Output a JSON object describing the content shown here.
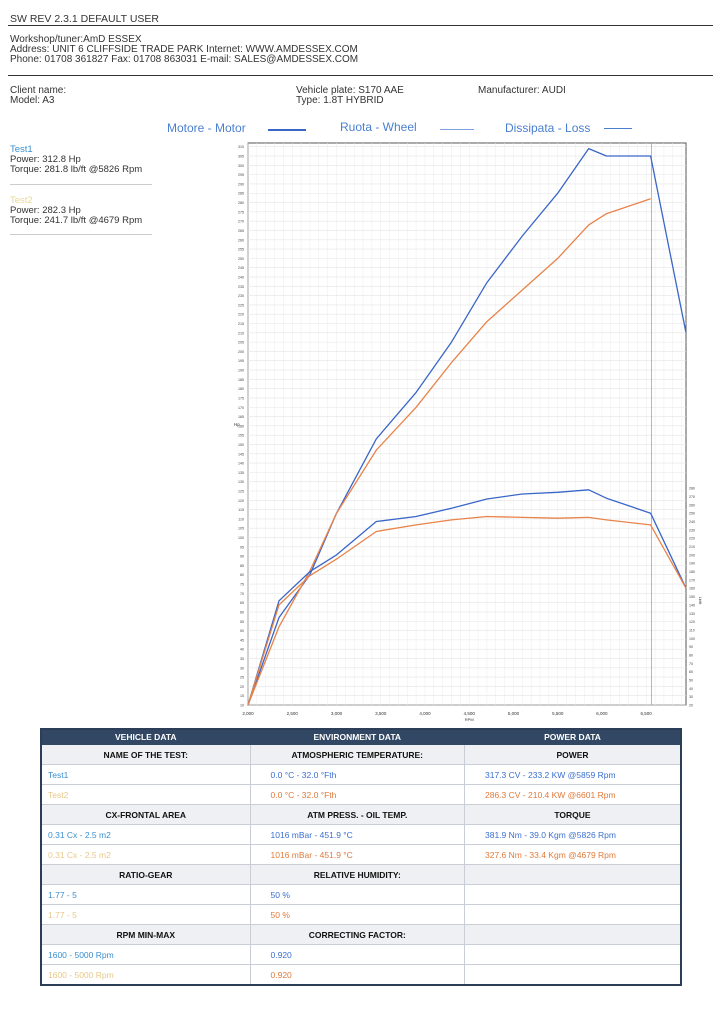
{
  "header": {
    "version_line": "SW REV 2.3.1   DEFAULT USER",
    "workshop": "Workshop/tuner:AmD ESSEX",
    "address": "Address: UNIT 6 CLIFFSIDE TRADE PARK Internet: WWW.AMDESSEX.COM",
    "phone": "Phone: 01708 361827 Fax: 01708 863031 E-mail: SALES@AMDESSEX.COM"
  },
  "client": {
    "client_name": "Client name:",
    "model": "Model: A3",
    "plate": "Vehicle plate: S170 AAE",
    "type": "Type: 1.8T HYBRID",
    "manufacturer": "Manufacturer: AUDI"
  },
  "legend": {
    "motor": "Motore - Motor",
    "wheel": "Ruota - Wheel",
    "loss": "Dissipata - Loss",
    "colors": {
      "motor": "#3a66c8",
      "wheel": "#e8834a",
      "loss": "#4a7fd0"
    }
  },
  "tests": [
    {
      "name": "Test1",
      "power": "Power: 312.8 Hp",
      "torque": "Torque: 281.8 lb/ft @5826 Rpm"
    },
    {
      "name": "Test2",
      "power": "Power: 282.3 Hp",
      "torque": "Torque: 241.7 lb/ft @4679 Rpm"
    }
  ],
  "chart_data": {
    "type": "line",
    "xlabel": "RPM",
    "ylabel": "Hp",
    "y2label": "Lb/ft",
    "xlim": [
      2000,
      6950
    ],
    "ylim": [
      10,
      312
    ],
    "y2lim": [
      20,
      285
    ],
    "x_ticks": [
      "2,000",
      "2,500",
      "3,000",
      "3,500",
      "4,000",
      "4,500",
      "5,000",
      "5,500",
      "6,000",
      "6,500"
    ],
    "series": [
      {
        "axis": "left",
        "color": "#3a66c8",
        "x": [
          2000,
          2350,
          2700,
          3000,
          3450,
          3900,
          4300,
          4700,
          5100,
          5500,
          5850,
          6050,
          6550,
          6950
        ],
        "y": [
          10,
          57,
          80,
          113,
          153,
          178,
          205,
          237,
          262,
          285,
          309,
          305,
          305,
          210
        ]
      },
      {
        "axis": "left",
        "color": "#e8834a",
        "x": [
          2000,
          2350,
          2700,
          3000,
          3450,
          3900,
          4300,
          4700,
          5100,
          5500,
          5850,
          6050,
          6550
        ],
        "y": [
          10,
          52,
          82,
          113,
          147,
          170,
          194,
          216,
          233,
          250,
          268,
          274,
          282
        ]
      },
      {
        "axis": "right",
        "color": "#3a66c8",
        "x": [
          2000,
          2350,
          2700,
          3000,
          3450,
          3900,
          4300,
          4700,
          5100,
          5500,
          5850,
          6050,
          6550,
          6950
        ],
        "y": [
          20,
          145,
          180,
          200,
          240,
          246,
          256,
          267,
          273,
          275,
          278,
          268,
          250,
          160
        ]
      },
      {
        "axis": "right",
        "color": "#e8834a",
        "x": [
          2000,
          2350,
          2700,
          3000,
          3450,
          3900,
          4300,
          4700,
          5100,
          5500,
          5850,
          6050,
          6550,
          6950
        ],
        "y": [
          20,
          140,
          175,
          195,
          228,
          236,
          242,
          246,
          245,
          244,
          245,
          242,
          236,
          160
        ]
      }
    ]
  },
  "table": {
    "headers": [
      "VEHICLE DATA",
      "ENVIRONMENT DATA",
      "POWER DATA"
    ],
    "sections": [
      {
        "labels": [
          "NAME OF THE TEST:",
          "ATMOSPHERIC TEMPERATURE:",
          "POWER"
        ],
        "rows": [
          [
            "Test1",
            "0.0 °C - 32.0 °Fth",
            "317.3 CV - 233.2 KW  @5859 Rpm"
          ],
          [
            "Test2",
            "0.0 °C - 32.0 °Fth",
            "286.3 CV - 210.4 KW  @6601 Rpm"
          ]
        ]
      },
      {
        "labels": [
          "CX-FRONTAL AREA",
          "ATM PRESS. - OIL TEMP.",
          "TORQUE"
        ],
        "rows": [
          [
            "0.31 Cx - 2.5 m2",
            "1016 mBar - 451.9 °C",
            "381.9 Nm - 39.0 Kgm  @5826 Rpm"
          ],
          [
            "0.31 Cx - 2.5 m2",
            "1016 mBar - 451.9 °C",
            "327.6 Nm - 33.4 Kgm  @4679 Rpm"
          ]
        ]
      },
      {
        "labels": [
          "RATIO-GEAR",
          "RELATIVE HUMIDITY:",
          ""
        ],
        "rows": [
          [
            "1.77 - 5",
            "50 %",
            ""
          ],
          [
            "1.77 - 5",
            "50 %",
            ""
          ]
        ]
      },
      {
        "labels": [
          "RPM MIN-MAX",
          "CORRECTING FACTOR:",
          ""
        ],
        "rows": [
          [
            "1600 - 5000 Rpm",
            "0.920",
            ""
          ],
          [
            "1600 - 5000 Rpm",
            "0.920",
            ""
          ]
        ]
      }
    ]
  }
}
